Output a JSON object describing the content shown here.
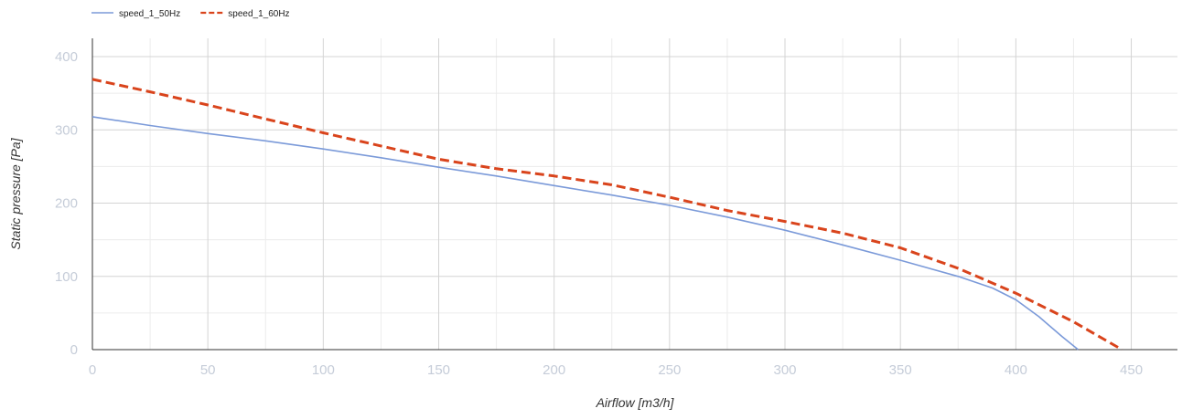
{
  "chart_data": {
    "type": "line",
    "title": "",
    "xlabel": "Airflow [m3/h]",
    "ylabel": "Static pressure [Pa]",
    "xlim": [
      0,
      470
    ],
    "ylim": [
      0,
      425
    ],
    "x_ticks": [
      0,
      50,
      100,
      150,
      200,
      250,
      300,
      350,
      400,
      450
    ],
    "y_ticks": [
      0,
      100,
      200,
      300,
      400
    ],
    "x_minor_step": 25,
    "y_minor_step": 50,
    "grid": true,
    "legend_position": "top-left",
    "series": [
      {
        "name": "speed_1_50Hz",
        "color": "#7b9ad9",
        "dashed": false,
        "x": [
          0,
          25,
          50,
          75,
          100,
          125,
          150,
          175,
          200,
          225,
          250,
          275,
          300,
          325,
          350,
          375,
          390,
          400,
          410,
          420,
          427
        ],
        "y": [
          318,
          306,
          295,
          285,
          274,
          262,
          249,
          237,
          224,
          211,
          197,
          181,
          163,
          143,
          122,
          100,
          84,
          68,
          45,
          18,
          0
        ]
      },
      {
        "name": "speed_1_60Hz",
        "color": "#d9441c",
        "dashed": true,
        "x": [
          0,
          25,
          50,
          75,
          100,
          125,
          150,
          175,
          200,
          225,
          250,
          275,
          300,
          325,
          350,
          375,
          400,
          425,
          446
        ],
        "y": [
          369,
          352,
          334,
          315,
          296,
          278,
          260,
          247,
          237,
          225,
          208,
          190,
          175,
          159,
          139,
          111,
          77,
          38,
          0
        ]
      }
    ]
  }
}
